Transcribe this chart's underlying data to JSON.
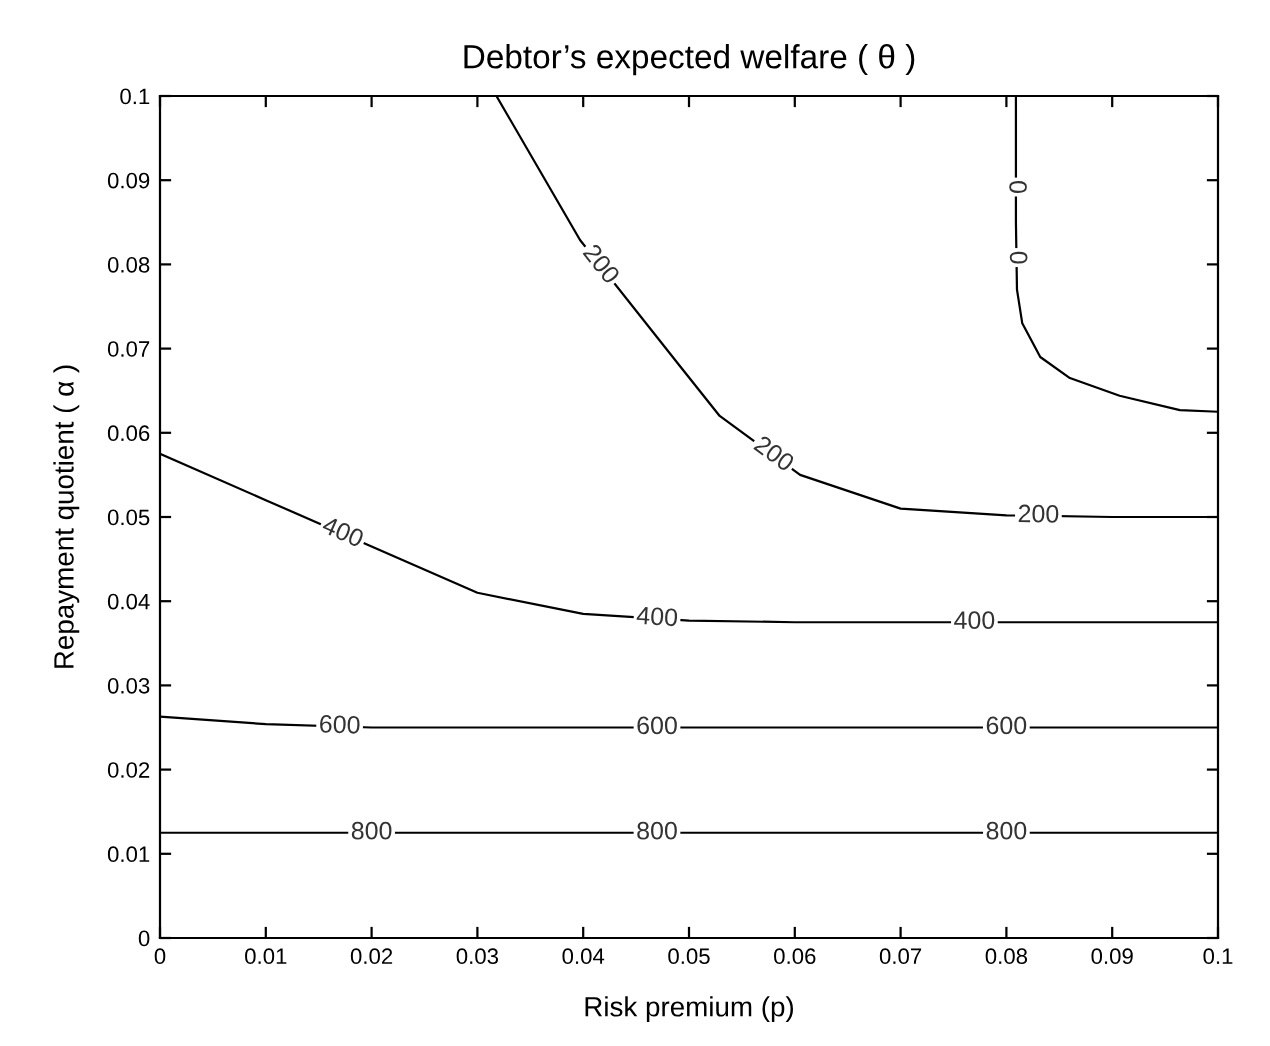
{
  "chart_data": {
    "type": "line",
    "title": "Debtor’s expected welfare ( θ )",
    "xlabel": "Risk premium (p)",
    "ylabel": "Repayment quotient ( α )",
    "xlim": [
      0,
      0.1
    ],
    "ylim": [
      0,
      0.1
    ],
    "xticks": [
      0,
      0.01,
      0.02,
      0.03,
      0.04,
      0.05,
      0.06,
      0.07,
      0.08,
      0.09,
      0.1
    ],
    "yticks": [
      0,
      0.01,
      0.02,
      0.03,
      0.04,
      0.05,
      0.06,
      0.07,
      0.08,
      0.09,
      0.1
    ],
    "grid": false,
    "legend": false,
    "marker": "none",
    "line_style": "solid",
    "series": [
      {
        "name": "0",
        "color": "#000000",
        "x": [
          0.0809,
          0.0809,
          0.081,
          0.0815,
          0.0832,
          0.086,
          0.0907,
          0.0964,
          0.1
        ],
        "values": [
          0.1,
          0.085,
          0.077,
          0.073,
          0.069,
          0.0665,
          0.0644,
          0.0627,
          0.0625
        ]
      },
      {
        "name": "200",
        "color": "#000000",
        "x": [
          0.0318,
          0.0397,
          0.0491,
          0.0529,
          0.0605,
          0.07,
          0.08,
          0.09,
          0.1
        ],
        "values": [
          0.1,
          0.0829,
          0.068,
          0.062,
          0.055,
          0.051,
          0.0502,
          0.05,
          0.05
        ]
      },
      {
        "name": "400",
        "color": "#000000",
        "x": [
          0,
          0.01,
          0.02,
          0.03,
          0.04,
          0.05,
          0.06,
          0.08,
          0.1
        ],
        "values": [
          0.0575,
          0.052,
          0.0465,
          0.041,
          0.0385,
          0.0377,
          0.0375,
          0.0375,
          0.0375
        ]
      },
      {
        "name": "600",
        "color": "#000000",
        "x": [
          0,
          0.01,
          0.02,
          0.05,
          0.1
        ],
        "values": [
          0.0263,
          0.0254,
          0.025,
          0.025,
          0.025
        ]
      },
      {
        "name": "800",
        "color": "#000000",
        "x": [
          0,
          0.05,
          0.1
        ],
        "values": [
          0.0125,
          0.0125,
          0.0125
        ]
      }
    ]
  }
}
